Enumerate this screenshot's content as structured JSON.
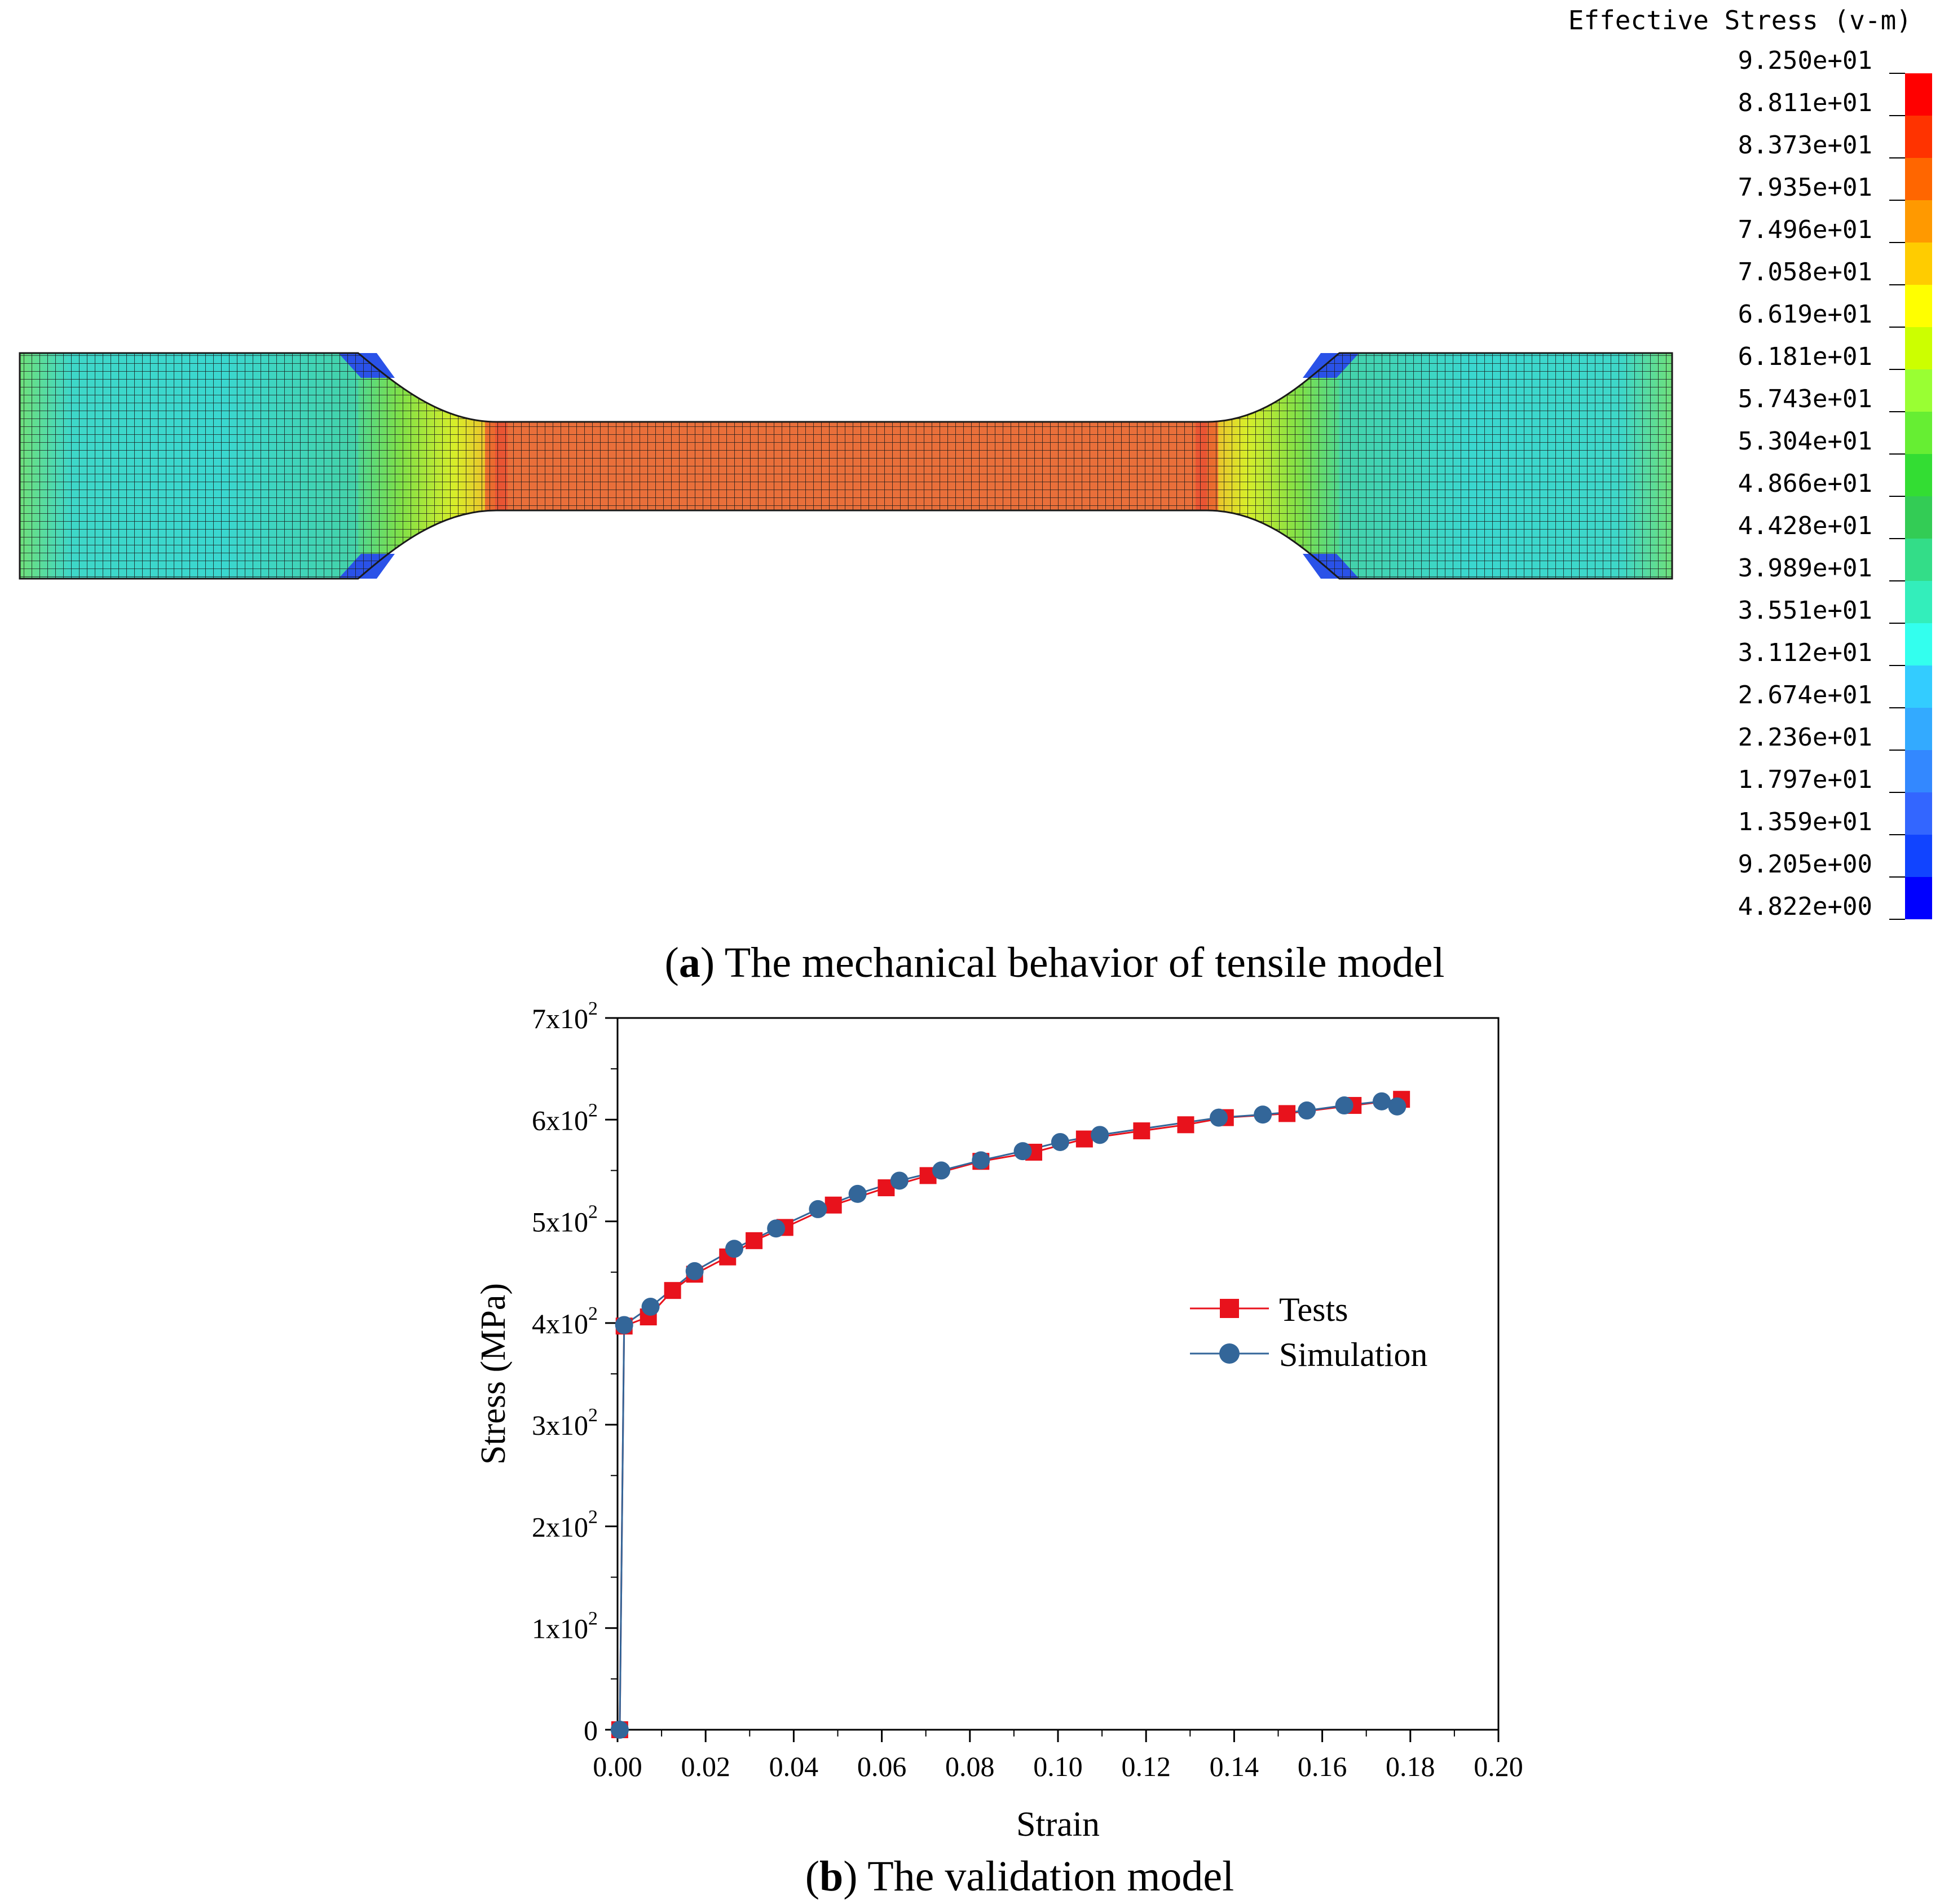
{
  "panel_a": {
    "caption_letter": "a",
    "caption_text": ") The mechanical behavior of tensile model",
    "legend_title": "Effective Stress (v-m)",
    "legend_values": [
      "9.250e+01",
      "8.811e+01",
      "8.373e+01",
      "7.935e+01",
      "7.496e+01",
      "7.058e+01",
      "6.619e+01",
      "6.181e+01",
      "5.743e+01",
      "5.304e+01",
      "4.866e+01",
      "4.428e+01",
      "3.989e+01",
      "3.551e+01",
      "3.112e+01",
      "2.674e+01",
      "2.236e+01",
      "1.797e+01",
      "1.359e+01",
      "9.205e+00",
      "4.822e+00"
    ],
    "legend_colors": [
      "#ff0000",
      "#ff3300",
      "#ff6600",
      "#ff9900",
      "#ffcc00",
      "#ffff00",
      "#ccff00",
      "#99ff33",
      "#66ee33",
      "#33dd33",
      "#33cc55",
      "#33dd88",
      "#33eebb",
      "#33ffee",
      "#33ccff",
      "#33aaff",
      "#3388ff",
      "#3366ff",
      "#1144ff",
      "#0000ff"
    ],
    "contour_colors": {
      "grip": "#3ed7c8",
      "grip_edge": "#70e07a",
      "shoulder_outer": "#6fe060",
      "shoulder_inner": "#f2f02a",
      "gauge": "#e96f3a",
      "corner": "#2444ee"
    }
  },
  "panel_b": {
    "caption_letter": "b",
    "caption_text": ") The validation model"
  },
  "chart_data": {
    "type": "line",
    "title": "",
    "xlabel": "Strain",
    "ylabel": "Stress (MPa)",
    "xlim": [
      0,
      0.2
    ],
    "ylim": [
      0,
      700
    ],
    "x_ticks": [
      "0.00",
      "0.02",
      "0.04",
      "0.06",
      "0.08",
      "0.10",
      "0.12",
      "0.14",
      "0.16",
      "0.18",
      "0.20"
    ],
    "y_ticks": [
      {
        "mantissa": "0",
        "exp": ""
      },
      {
        "mantissa": "1x10",
        "exp": "2"
      },
      {
        "mantissa": "2x10",
        "exp": "2"
      },
      {
        "mantissa": "3x10",
        "exp": "2"
      },
      {
        "mantissa": "4x10",
        "exp": "2"
      },
      {
        "mantissa": "5x10",
        "exp": "2"
      },
      {
        "mantissa": "6x10",
        "exp": "2"
      },
      {
        "mantissa": "7x10",
        "exp": "2"
      }
    ],
    "grid": false,
    "legend_position": "right-middle",
    "series": [
      {
        "name": "Tests",
        "color": "#e8121c",
        "marker": "square",
        "x": [
          0.0005,
          0.0015,
          0.007,
          0.0125,
          0.0175,
          0.025,
          0.031,
          0.038,
          0.049,
          0.061,
          0.0705,
          0.0825,
          0.0945,
          0.106,
          0.119,
          0.129,
          0.138,
          0.152,
          0.167,
          0.178
        ],
        "y": [
          0,
          397,
          406,
          432,
          448,
          465,
          481,
          494,
          516,
          533,
          545,
          559,
          568,
          581,
          589,
          595,
          602,
          606,
          614,
          620
        ]
      },
      {
        "name": "Simulation",
        "color": "#336699",
        "marker": "circle",
        "x": [
          0.0005,
          0.0015,
          0.0075,
          0.0175,
          0.0265,
          0.036,
          0.0455,
          0.0545,
          0.064,
          0.0735,
          0.0825,
          0.092,
          0.1005,
          0.1095,
          0.1365,
          0.1465,
          0.1565,
          0.165,
          0.1735,
          0.177
        ],
        "y": [
          0,
          398,
          416,
          451,
          473,
          493,
          512,
          527,
          540,
          550,
          560,
          569,
          578,
          585,
          602,
          605,
          609,
          614,
          618,
          613
        ]
      }
    ]
  }
}
